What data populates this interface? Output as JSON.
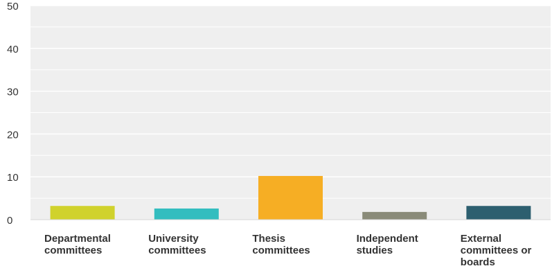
{
  "chart_data": {
    "type": "bar",
    "categories": [
      [
        "Departmental",
        "committees"
      ],
      [
        "University",
        "committees"
      ],
      [
        "Thesis",
        "committees"
      ],
      [
        "Independent",
        "studies"
      ],
      [
        "External",
        "committees or",
        "boards"
      ]
    ],
    "values": [
      3.2,
      2.6,
      10.2,
      1.8,
      3.2
    ],
    "colors": [
      "#d0d22c",
      "#33bdbf",
      "#f6ae24",
      "#8a8b79",
      "#2d5f6f"
    ],
    "ylim": [
      0,
      50
    ],
    "yticks": [
      0,
      10,
      20,
      30,
      40,
      50
    ],
    "grid": true,
    "title": "",
    "xlabel": "",
    "ylabel": ""
  }
}
